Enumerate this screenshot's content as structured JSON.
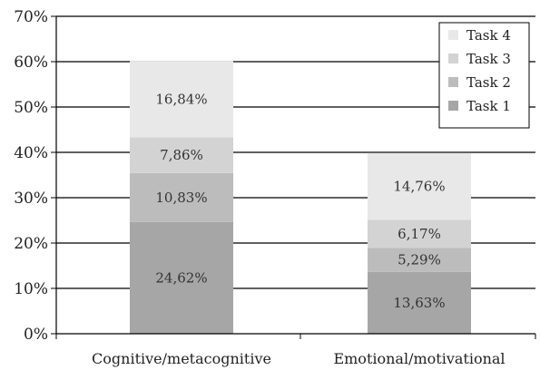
{
  "chart_data": {
    "type": "bar",
    "stacked": true,
    "categories": [
      "Cognitive/metacognitive",
      "Emotional/motivational"
    ],
    "series": [
      {
        "name": "Task 1",
        "values": [
          24.62,
          13.63
        ],
        "labels": [
          "24,62%",
          "13,63%"
        ],
        "color": "#a6a6a6"
      },
      {
        "name": "Task 2",
        "values": [
          10.83,
          5.29
        ],
        "labels": [
          "10,83%",
          "5,29%"
        ],
        "color": "#bcbcbc"
      },
      {
        "name": "Task 3",
        "values": [
          7.86,
          6.17
        ],
        "labels": [
          "7,86%",
          "6,17%"
        ],
        "color": "#d3d3d3"
      },
      {
        "name": "Task 4",
        "values": [
          16.84,
          14.76
        ],
        "labels": [
          "16,84%",
          "14,76%"
        ],
        "color": "#e8e8e8"
      }
    ],
    "ylim": [
      0,
      70
    ],
    "yticks": [
      0,
      10,
      20,
      30,
      40,
      50,
      60,
      70
    ],
    "ytick_labels": [
      "0%",
      "10%",
      "20%",
      "30%",
      "40%",
      "50%",
      "60%",
      "70%"
    ],
    "grid": true,
    "legend_position": "top-right",
    "legend_order": [
      "Task 4",
      "Task 3",
      "Task 2",
      "Task 1"
    ],
    "title": "",
    "xlabel": "",
    "ylabel": ""
  }
}
